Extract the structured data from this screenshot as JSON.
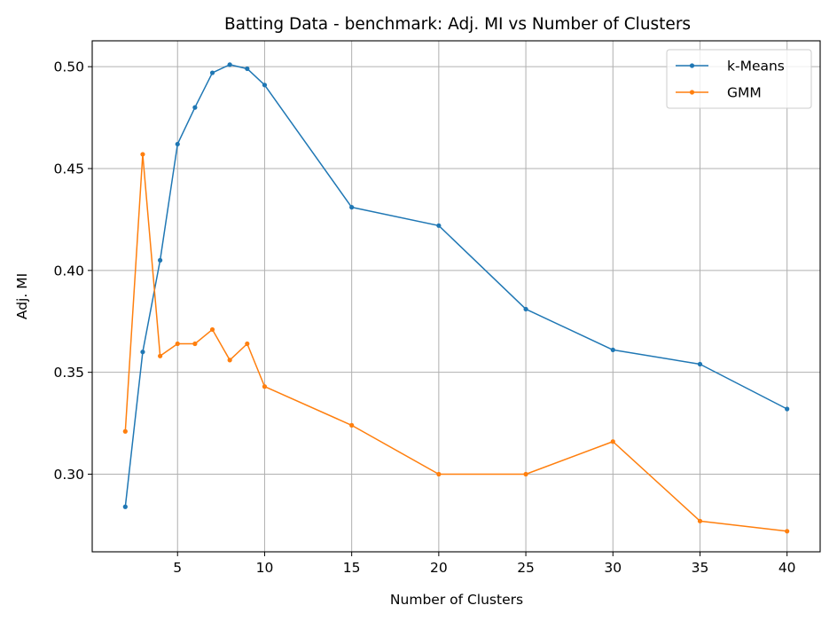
{
  "chart_data": {
    "type": "line",
    "title": "Batting Data - benchmark: Adj. MI vs Number of Clusters",
    "xlabel": "Number of Clusters",
    "ylabel": "Adj. MI",
    "x": [
      2,
      3,
      4,
      5,
      6,
      7,
      8,
      9,
      10,
      15,
      20,
      25,
      30,
      35,
      40
    ],
    "xticks": [
      5,
      10,
      15,
      20,
      25,
      30,
      35,
      40
    ],
    "xtick_labels": [
      "5",
      "10",
      "15",
      "20",
      "25",
      "30",
      "35",
      "40"
    ],
    "yticks": [
      0.3,
      0.35,
      0.4,
      0.45,
      0.5
    ],
    "ytick_labels": [
      "0.30",
      "0.35",
      "0.40",
      "0.45",
      "0.50"
    ],
    "xlim": [
      0.1,
      41.9
    ],
    "ylim": [
      0.2619,
      0.5127
    ],
    "grid": true,
    "legend_position": "top-right",
    "series": [
      {
        "name": "k-Means",
        "color": "#1f77b4",
        "values": [
          0.284,
          0.36,
          0.405,
          0.462,
          0.48,
          0.497,
          0.501,
          0.499,
          0.491,
          0.431,
          0.422,
          0.381,
          0.361,
          0.354,
          0.332
        ]
      },
      {
        "name": "GMM",
        "color": "#ff7f0e",
        "values": [
          0.321,
          0.457,
          0.358,
          0.364,
          0.364,
          0.371,
          0.356,
          0.364,
          0.343,
          0.324,
          0.3,
          0.3,
          0.316,
          0.277,
          0.272
        ]
      }
    ]
  }
}
